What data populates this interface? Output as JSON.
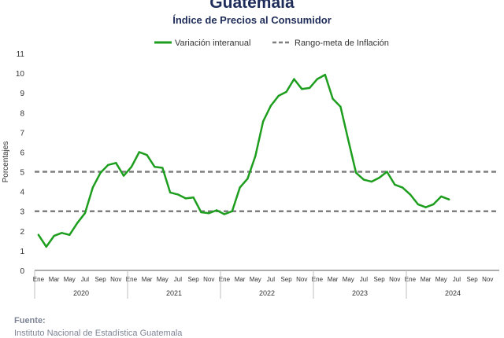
{
  "header": {
    "title": "Guatemala",
    "subtitle": "Índice de Precios al Consumidor"
  },
  "source": {
    "label": "Fuente:",
    "text": "Instituto Nacional de Estadística Guatemala"
  },
  "colors": {
    "series": "#1e9e1e",
    "target": "#7f7f7f",
    "text": "#1f2d5a",
    "axis": "#595959"
  },
  "chart_data": {
    "type": "line",
    "ylabel": "Porcentajes",
    "xlabel": "",
    "ylim": [
      0,
      11
    ],
    "yticks": [
      0,
      1,
      2,
      3,
      4,
      5,
      6,
      7,
      8,
      9,
      10,
      11
    ],
    "grid": false,
    "legend_position": "top",
    "month_ticks": [
      "Ene",
      "Mar",
      "May",
      "Jul",
      "Sep",
      "Nov"
    ],
    "years": [
      "2020",
      "2021",
      "2022",
      "2023",
      "2024"
    ],
    "x": [
      "2020-01",
      "2020-02",
      "2020-03",
      "2020-04",
      "2020-05",
      "2020-06",
      "2020-07",
      "2020-08",
      "2020-09",
      "2020-10",
      "2020-11",
      "2020-12",
      "2021-01",
      "2021-02",
      "2021-03",
      "2021-04",
      "2021-05",
      "2021-06",
      "2021-07",
      "2021-08",
      "2021-09",
      "2021-10",
      "2021-11",
      "2021-12",
      "2022-01",
      "2022-02",
      "2022-03",
      "2022-04",
      "2022-05",
      "2022-06",
      "2022-07",
      "2022-08",
      "2022-09",
      "2022-10",
      "2022-11",
      "2022-12",
      "2023-01",
      "2023-02",
      "2023-03",
      "2023-04",
      "2023-05",
      "2023-06",
      "2023-07",
      "2023-08",
      "2023-09",
      "2023-10",
      "2023-11",
      "2023-12",
      "2024-01",
      "2024-02",
      "2024-03",
      "2024-04",
      "2024-05",
      "2024-06"
    ],
    "series": [
      {
        "name": "Variación interanual",
        "values": [
          1.8,
          1.2,
          1.75,
          1.9,
          1.8,
          2.4,
          2.9,
          4.2,
          4.95,
          5.35,
          5.45,
          4.8,
          5.25,
          6.0,
          5.85,
          5.25,
          5.2,
          3.95,
          3.85,
          3.65,
          3.7,
          2.95,
          2.9,
          3.05,
          2.85,
          3.0,
          4.2,
          4.65,
          5.8,
          7.55,
          8.35,
          8.85,
          9.05,
          9.7,
          9.2,
          9.25,
          9.7,
          9.92,
          8.7,
          8.3,
          6.6,
          4.95,
          4.6,
          4.5,
          4.7,
          5.0,
          4.35,
          4.2,
          3.85,
          3.35,
          3.2,
          3.35,
          3.75,
          3.6
        ]
      },
      {
        "name": "Rango-meta de Inflación",
        "lines": [
          3,
          5
        ]
      }
    ]
  }
}
